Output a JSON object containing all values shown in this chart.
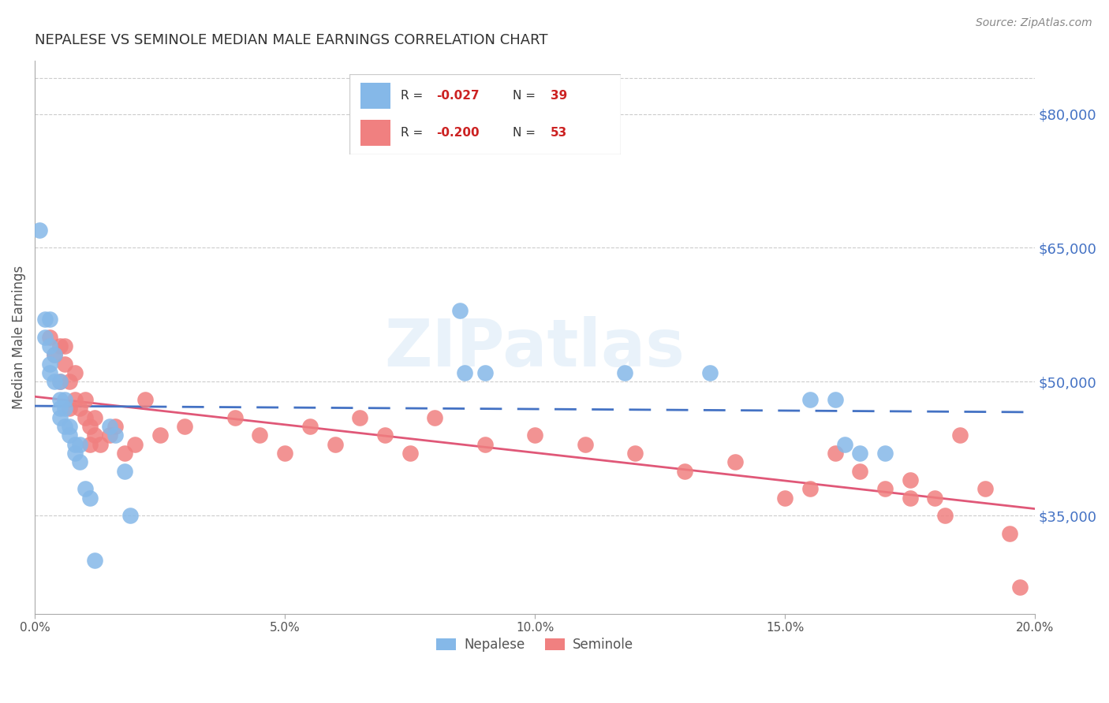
{
  "title": "NEPALESE VS SEMINOLE MEDIAN MALE EARNINGS CORRELATION CHART",
  "source": "Source: ZipAtlas.com",
  "ylabel": "Median Male Earnings",
  "xlim": [
    0.0,
    0.2
  ],
  "ylim": [
    24000,
    86000
  ],
  "right_ytick_values": [
    35000,
    50000,
    65000,
    80000
  ],
  "right_ytick_labels": [
    "$35,000",
    "$50,000",
    "$65,000",
    "$80,000"
  ],
  "nepalese_color": "#85b8e8",
  "seminole_color": "#f08080",
  "nepalese_line_color": "#4472c4",
  "seminole_line_color": "#e05878",
  "nepalese_R": -0.027,
  "nepalese_N": 39,
  "seminole_R": -0.2,
  "seminole_N": 53,
  "watermark": "ZIPatlas",
  "watermark_color": "#c8d8f0",
  "grid_color": "#cccccc",
  "title_color": "#333333",
  "axis_label_color": "#555555",
  "right_label_color": "#4472c4",
  "nepalese_x": [
    0.001,
    0.002,
    0.002,
    0.003,
    0.003,
    0.003,
    0.003,
    0.004,
    0.004,
    0.005,
    0.005,
    0.005,
    0.005,
    0.006,
    0.006,
    0.006,
    0.007,
    0.007,
    0.008,
    0.008,
    0.009,
    0.009,
    0.01,
    0.011,
    0.012,
    0.015,
    0.016,
    0.018,
    0.019,
    0.085,
    0.086,
    0.09,
    0.118,
    0.135,
    0.155,
    0.16,
    0.162,
    0.165,
    0.17
  ],
  "nepalese_y": [
    67000,
    57000,
    55000,
    57000,
    54000,
    52000,
    51000,
    53000,
    50000,
    50000,
    48000,
    47000,
    46000,
    48000,
    47000,
    45000,
    45000,
    44000,
    43000,
    42000,
    41000,
    43000,
    38000,
    37000,
    30000,
    45000,
    44000,
    40000,
    35000,
    58000,
    51000,
    51000,
    51000,
    51000,
    48000,
    48000,
    43000,
    42000,
    42000
  ],
  "seminole_x": [
    0.003,
    0.004,
    0.005,
    0.005,
    0.006,
    0.006,
    0.007,
    0.007,
    0.008,
    0.008,
    0.009,
    0.01,
    0.01,
    0.011,
    0.011,
    0.012,
    0.012,
    0.013,
    0.015,
    0.016,
    0.018,
    0.02,
    0.022,
    0.025,
    0.03,
    0.04,
    0.045,
    0.05,
    0.055,
    0.06,
    0.065,
    0.07,
    0.075,
    0.08,
    0.09,
    0.1,
    0.11,
    0.12,
    0.13,
    0.14,
    0.15,
    0.155,
    0.16,
    0.165,
    0.17,
    0.175,
    0.175,
    0.18,
    0.182,
    0.185,
    0.19,
    0.195,
    0.197
  ],
  "seminole_y": [
    55000,
    53000,
    54000,
    50000,
    54000,
    52000,
    50000,
    47000,
    51000,
    48000,
    47000,
    48000,
    46000,
    45000,
    43000,
    46000,
    44000,
    43000,
    44000,
    45000,
    42000,
    43000,
    48000,
    44000,
    45000,
    46000,
    44000,
    42000,
    45000,
    43000,
    46000,
    44000,
    42000,
    46000,
    43000,
    44000,
    43000,
    42000,
    40000,
    41000,
    37000,
    38000,
    42000,
    40000,
    38000,
    37000,
    39000,
    37000,
    35000,
    44000,
    38000,
    33000,
    27000
  ]
}
